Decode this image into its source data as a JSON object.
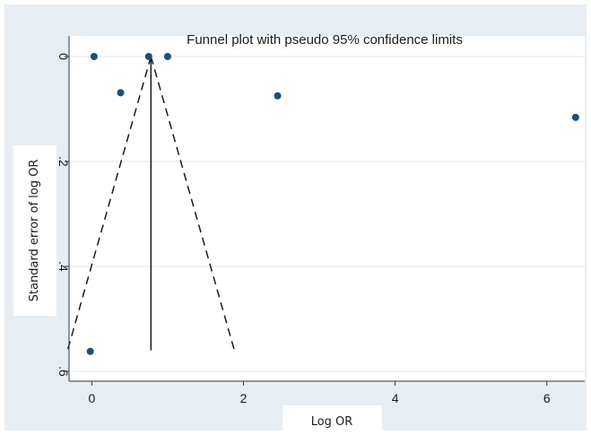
{
  "chart_data": {
    "type": "scatter",
    "title": "Funnel plot with pseudo 95% confidence limits",
    "xlabel": "Log OR",
    "ylabel": "Standard error of log OR",
    "xlim": [
      -0.3,
      6.5
    ],
    "ylim": [
      0,
      0.6
    ],
    "y_reversed": true,
    "x_ticks": [
      0,
      2,
      4,
      6
    ],
    "x_tick_labels": [
      "0",
      "2",
      "4",
      "6"
    ],
    "y_ticks": [
      0,
      0.2,
      0.4,
      0.6
    ],
    "y_tick_labels": [
      "0",
      ".2",
      ".4",
      ".6"
    ],
    "grid": "horizontal",
    "series": [
      {
        "type": "scatter",
        "color": "#1f4e79",
        "points": [
          {
            "x": 0.03,
            "y": 0.0
          },
          {
            "x": 0.75,
            "y": 0.0
          },
          {
            "x": 1.0,
            "y": 0.0
          },
          {
            "x": 0.38,
            "y": 0.069
          },
          {
            "x": 2.45,
            "y": 0.075
          },
          {
            "x": 6.38,
            "y": 0.116
          },
          {
            "x": -0.02,
            "y": 0.562
          }
        ]
      }
    ],
    "reference_lines": {
      "vertical": {
        "x": 0.78,
        "y_from": 0,
        "y_to": 0.56
      },
      "pseudo_ci": {
        "apex": {
          "x": 0.78,
          "y": 0
        },
        "left_end": {
          "x": -0.32,
          "y": 0.56
        },
        "right_end": {
          "x": 1.88,
          "y": 0.56
        },
        "style": "dashed"
      }
    }
  }
}
